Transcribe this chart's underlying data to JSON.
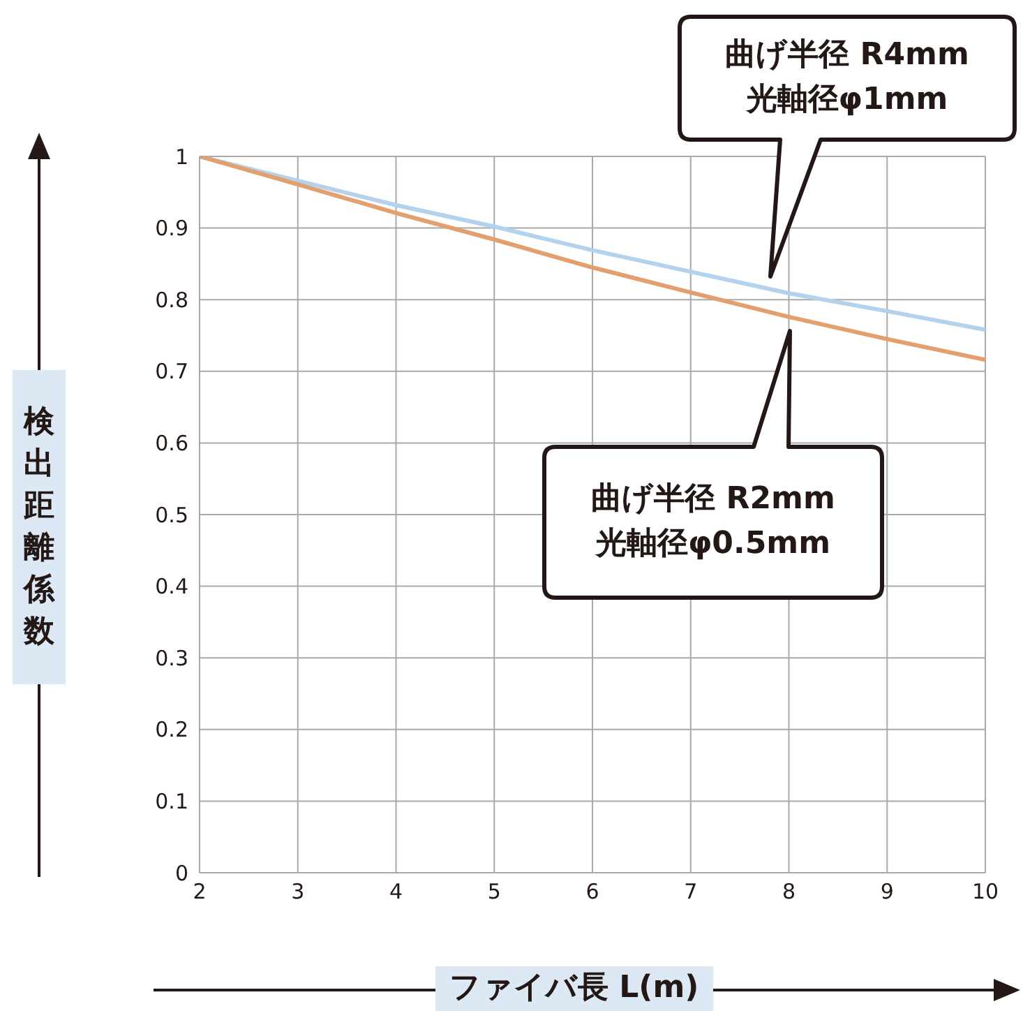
{
  "chart_data": {
    "type": "line",
    "xlabel": "ファイバ長 L(m)",
    "ylabel": "検出距離係数",
    "x": [
      2,
      3,
      4,
      5,
      6,
      7,
      8,
      9,
      10
    ],
    "series": [
      {
        "color": "#b4d2ec",
        "values": [
          1,
          0.966,
          0.932,
          0.902,
          0.869,
          0.839,
          0.809,
          0.784,
          0.758
        ]
      },
      {
        "color": "#e39f6e",
        "values": [
          1,
          0.961,
          0.921,
          0.884,
          0.845,
          0.81,
          0.776,
          0.745,
          0.716
        ]
      }
    ],
    "xlim": [
      2,
      10
    ],
    "xticks": [
      2,
      3,
      4,
      5,
      6,
      7,
      8,
      9,
      10
    ],
    "ylim": [
      0,
      1
    ],
    "yticks": [
      0,
      0.1,
      0.2,
      0.3,
      0.4,
      0.5,
      0.6,
      0.7,
      0.8,
      0.9,
      1
    ],
    "grid": true,
    "marker": "none",
    "line_style": "solid",
    "annotations": [
      "曲げ半径 R4mm\n光軸径φ1mm",
      "曲げ半径 R2mm\n光軸径φ0.5mm"
    ]
  }
}
